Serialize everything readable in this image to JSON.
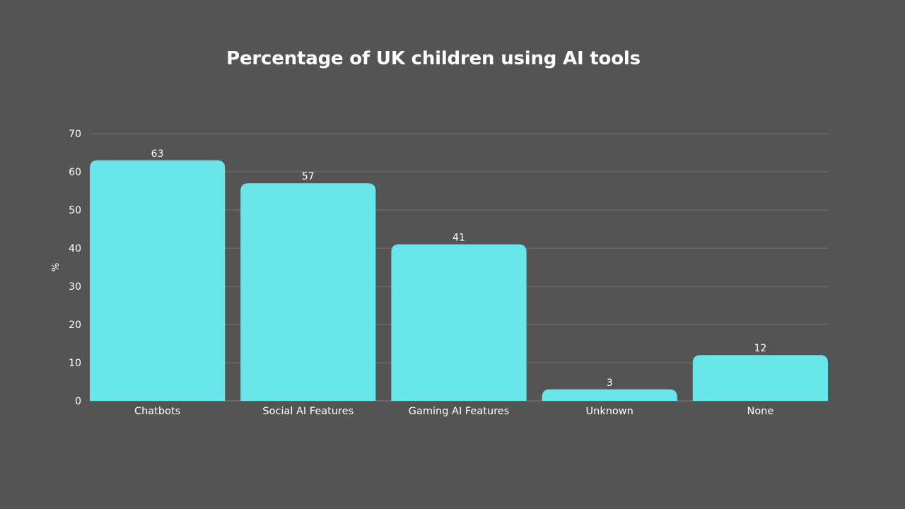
{
  "chart_data": {
    "type": "bar",
    "title": "Percentage of UK children using AI tools",
    "xlabel": "",
    "ylabel": "%",
    "categories": [
      "Chatbots",
      "Social AI Features",
      "Gaming AI Features",
      "Unknown",
      "None"
    ],
    "values": [
      63,
      57,
      41,
      3,
      12
    ],
    "ylim": [
      0,
      70
    ],
    "yticks": [
      "0",
      "10",
      "20",
      "30",
      "40",
      "50",
      "60",
      "70"
    ],
    "grid": true,
    "legend": "none",
    "colors": {
      "background": "#545454",
      "bar": "#69E6EA",
      "grid": "#737373",
      "text": "#FFFFFF"
    }
  }
}
